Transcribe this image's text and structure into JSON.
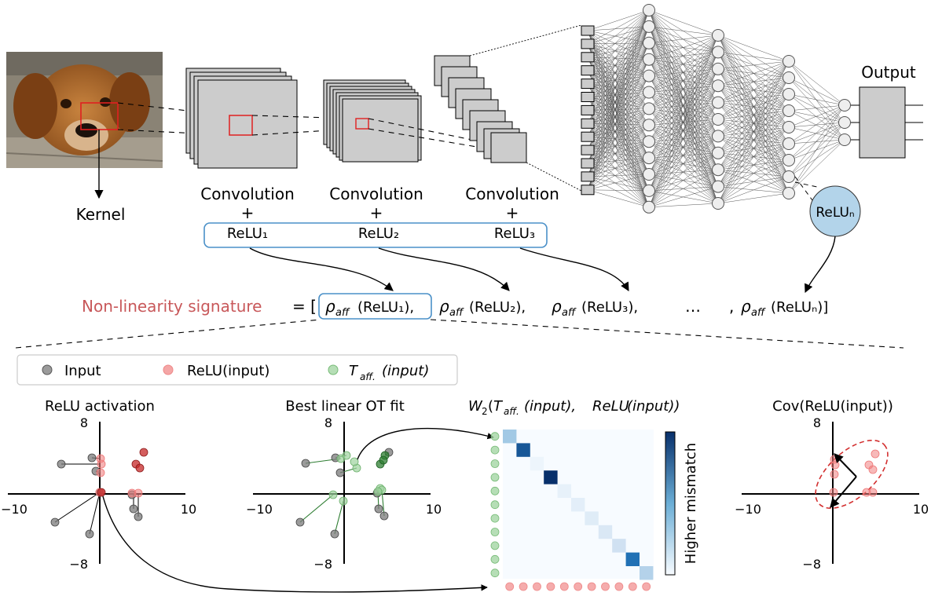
{
  "colors": {
    "input": "#7a7a7a",
    "relu": "#f08080",
    "relu_dark": "#c62828",
    "taff": "#9ed39e",
    "taff_dark": "#2e7d32",
    "signature": "#c8585a",
    "bracket": "#4a90c8",
    "relu_n_fill": "#b3d4ea",
    "kernel_box": "#e02020",
    "cov_ellipse": "#d32f2f"
  },
  "icons": {
    "photo": "dog-photo"
  },
  "top": {
    "kernel_label": "Kernel",
    "output_label": "Output",
    "conv1_line1": "Convolution",
    "conv1_plus": "+",
    "conv1_relu": "ReLU₁",
    "conv2_line1": "Convolution",
    "conv2_plus": "+",
    "conv2_relu": "ReLU₂",
    "conv3_line1": "Convolution",
    "conv3_plus": "+",
    "conv3_relu": "ReLU₃",
    "relu_n": "ReLUₙ"
  },
  "signature": {
    "label": "Non-linearity signature",
    "equals_open": "= [",
    "rho": "ρ",
    "aff": "aff",
    "term1": "(ReLU₁),",
    "term2": "(ReLU₂),",
    "term3": "(ReLU₃),",
    "ellipsis": "…",
    "comma": ",",
    "term_n": "(ReLUₙ)]"
  },
  "legend": {
    "input": "Input",
    "relu": "ReLU(input)",
    "taff_T": "T",
    "taff_sub": "aff.",
    "taff_rest": "(input)"
  },
  "panels": {
    "relu_activation": {
      "title": "ReLU activation",
      "ymax_label": "8",
      "ymin_label": "−8",
      "xmin_label": "−10",
      "xmax_label": "10"
    },
    "best_fit": {
      "title": "Best linear OT fit",
      "ymax_label": "8",
      "ymin_label": "−8",
      "xmin_label": "−10",
      "xmax_label": "10"
    },
    "w2": {
      "title_W": "W",
      "title_sub": "2",
      "title_open": "(",
      "title_T": "T",
      "title_aff": "aff.",
      "title_input1": "(input), ",
      "title_relu": "ReLU",
      "title_input2": "(input))",
      "colorbar_label": "Higher mismatch",
      "diagonal": [
        0.35,
        0.85,
        0.05,
        1.0,
        0.08,
        0.1,
        0.12,
        0.15,
        0.2,
        0.75,
        0.3
      ]
    },
    "cov": {
      "title": "Cov(ReLU(input))",
      "ymax_label": "8",
      "ymin_label": "−8",
      "xmin_label": "−10",
      "xmax_label": "10"
    }
  }
}
